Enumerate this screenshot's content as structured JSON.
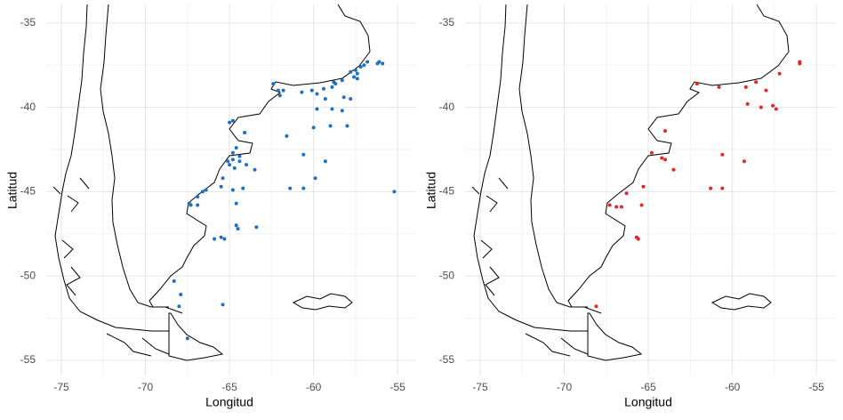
{
  "chart_data": [
    {
      "type": "scatter",
      "xlabel": "Longitud",
      "ylabel": "Latitud",
      "color": "#1f6fc1",
      "grid": true,
      "xlim": [
        -75.9,
        -53.9
      ],
      "ylim": [
        -55.9,
        -33.9
      ],
      "xticks": [
        -75,
        -70,
        -65,
        -60,
        -55
      ],
      "yticks": [
        -35,
        -40,
        -45,
        -50,
        -55
      ],
      "x": [
        -56.8,
        -57.0,
        -57.2,
        -57.5,
        -57.4,
        -57.6,
        -57.4,
        -57.8,
        -55.9,
        -56.1,
        -56.2,
        -58.3,
        -58.8,
        -58.7,
        -58.9,
        -59.4,
        -59.8,
        -60.1,
        -60.7,
        -61.8,
        -62.4,
        -62.1,
        -62.0,
        -59.3,
        -58.2,
        -57.8,
        -58.3,
        -58.9,
        -59.8,
        -58.0,
        -59.0,
        -60.0,
        -61.6,
        -60.6,
        -59.3,
        -59.9,
        -60.6,
        -61.4,
        -55.2,
        -64.1,
        -64.8,
        -65.0,
        -64.6,
        -64.8,
        -64.4,
        -64.8,
        -65.1,
        -65.0,
        -64.7,
        -64.4,
        -64.0,
        -63.5,
        -65.4,
        -65.5,
        -64.8,
        -64.2,
        -66.4,
        -66.6,
        -66.9,
        -67.4,
        -67.3,
        -66.9,
        -64.6,
        -64.6,
        -64.5,
        -63.4,
        -65.5,
        -65.9,
        -65.3,
        -68.3,
        -67.9,
        -68.0,
        -65.4,
        -67.5
      ],
      "y": [
        -37.3,
        -37.5,
        -37.6,
        -37.8,
        -38.0,
        -38.2,
        -38.3,
        -37.9,
        -37.4,
        -37.3,
        -37.4,
        -38.4,
        -38.5,
        -38.6,
        -38.8,
        -38.9,
        -39.2,
        -39.0,
        -39.1,
        -39.0,
        -38.6,
        -39.0,
        -39.3,
        -39.5,
        -39.4,
        -39.5,
        -40.2,
        -40.1,
        -40.1,
        -41.1,
        -41.1,
        -41.2,
        -41.7,
        -42.8,
        -43.2,
        -44.2,
        -44.8,
        -44.8,
        -45.0,
        -41.5,
        -40.8,
        -40.9,
        -42.4,
        -42.7,
        -42.9,
        -43.1,
        -43.2,
        -43.4,
        -43.6,
        -43.2,
        -43.4,
        -43.7,
        -44.2,
        -44.7,
        -44.9,
        -44.8,
        -44.9,
        -45.0,
        -45.3,
        -45.7,
        -45.8,
        -45.8,
        -45.7,
        -47.0,
        -47.2,
        -47.1,
        -47.7,
        -47.8,
        -47.8,
        -50.3,
        -51.1,
        -51.8,
        -51.7,
        -53.7
      ]
    },
    {
      "type": "scatter",
      "xlabel": "Longitud",
      "ylabel": "Latitud",
      "color": "#e0282a",
      "grid": true,
      "xlim": [
        -75.9,
        -53.9
      ],
      "ylim": [
        -55.9,
        -33.9
      ],
      "xticks": [
        -75,
        -70,
        -65,
        -60,
        -55
      ],
      "yticks": [
        -35,
        -40,
        -45,
        -50,
        -55
      ],
      "x": [
        -62.1,
        -60.8,
        -59.2,
        -58.6,
        -58.0,
        -57.2,
        -56.0,
        -56.0,
        -59.1,
        -58.3,
        -57.6,
        -57.4,
        -64.0,
        -64.8,
        -64.2,
        -64.0,
        -60.6,
        -59.3,
        -63.5,
        -61.3,
        -60.6,
        -65.3,
        -66.3,
        -67.3,
        -66.9,
        -66.6,
        -65.4,
        -65.7,
        -65.6,
        -68.1
      ],
      "y": [
        -38.6,
        -38.8,
        -38.8,
        -38.5,
        -39.0,
        -38.0,
        -37.4,
        -37.3,
        -39.8,
        -40.0,
        -39.9,
        -40.1,
        -41.4,
        -42.7,
        -43.0,
        -43.1,
        -42.8,
        -43.2,
        -43.7,
        -44.8,
        -44.8,
        -44.7,
        -45.1,
        -45.8,
        -45.9,
        -45.9,
        -45.8,
        -47.7,
        -47.8,
        -51.8
      ]
    }
  ]
}
